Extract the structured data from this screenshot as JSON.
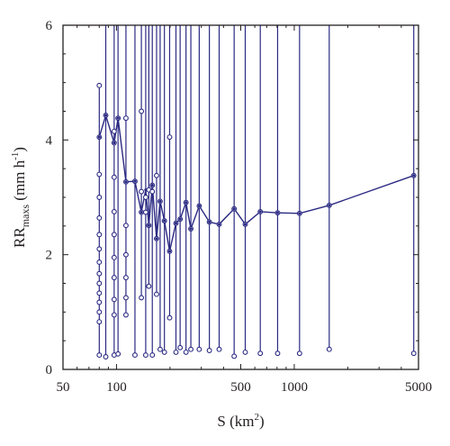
{
  "chart_data": {
    "type": "line",
    "xlabel_base": "S (km",
    "xlabel_sup": "2",
    "xlabel_end": ")",
    "ylabel_base": "RR",
    "ylabel_sub": "maxs",
    "ylabel_unit": " (mm h",
    "ylabel_sup": "-1",
    "ylabel_end": ")",
    "x_scale": "log",
    "xlim": [
      50,
      5000
    ],
    "ylim": [
      0,
      6
    ],
    "xticks": [
      50,
      100,
      500,
      1000,
      5000
    ],
    "xtick_labels": [
      "50",
      "100",
      "500",
      "1000",
      "5000"
    ],
    "yticks": [
      0,
      2,
      4,
      6
    ],
    "ytick_labels": [
      "0",
      "2",
      "4",
      "6"
    ],
    "grid": false,
    "colors": {
      "series": "#2b2a83",
      "axis": "#231f20"
    },
    "main_line": {
      "x": [
        80,
        87,
        97,
        102,
        113,
        127,
        138,
        146,
        152,
        159,
        168,
        176,
        186,
        199,
        216,
        228,
        246,
        262,
        292,
        333,
        378,
        459,
        530,
        644,
        806,
        1071,
        1573,
        4701
      ],
      "y": [
        4.05,
        4.43,
        3.95,
        4.38,
        3.27,
        3.28,
        2.74,
        3.13,
        2.51,
        3.21,
        2.28,
        2.93,
        2.59,
        2.06,
        2.55,
        2.62,
        2.91,
        2.45,
        2.85,
        2.57,
        2.53,
        2.8,
        2.53,
        2.75,
        2.73,
        2.72,
        2.86,
        3.38
      ]
    },
    "distributions": [
      {
        "x": 80,
        "top": 4.95,
        "points": [
          4.95,
          4.05,
          3.4,
          3.0,
          2.64,
          2.35,
          2.1,
          1.87,
          1.67,
          1.5,
          1.33,
          1.17,
          1.0,
          0.83,
          0.25
        ]
      },
      {
        "x": 87,
        "top": 6,
        "points": [
          4.43,
          0.22
        ]
      },
      {
        "x": 97,
        "top": 6,
        "points": [
          4.15,
          3.95,
          3.35,
          2.75,
          2.35,
          1.95,
          1.6,
          1.22,
          0.95,
          0.25
        ]
      },
      {
        "x": 102,
        "top": 6,
        "points": [
          4.38,
          0.27
        ]
      },
      {
        "x": 113,
        "top": 6,
        "points": [
          4.38,
          3.27,
          2.51,
          2.0,
          1.6,
          1.25,
          0.95
        ]
      },
      {
        "x": 127,
        "top": 6,
        "points": [
          3.28,
          0.25
        ]
      },
      {
        "x": 138,
        "top": 6,
        "points": [
          4.5,
          3.1,
          2.74,
          1.25
        ]
      },
      {
        "x": 146,
        "top": 6,
        "points": [
          3.0,
          2.74,
          0.25
        ]
      },
      {
        "x": 152,
        "top": 6,
        "points": [
          3.13,
          2.51,
          1.45
        ]
      },
      {
        "x": 159,
        "top": 6,
        "points": [
          3.21,
          3.1,
          0.25
        ]
      },
      {
        "x": 168,
        "top": 6,
        "points": [
          3.38,
          2.28,
          1.31
        ]
      },
      {
        "x": 176,
        "top": 6,
        "points": [
          2.93,
          0.35
        ]
      },
      {
        "x": 186,
        "top": 6,
        "points": [
          2.59,
          0.3
        ]
      },
      {
        "x": 199,
        "top": 6,
        "points": [
          4.05,
          2.06,
          0.9
        ]
      },
      {
        "x": 216,
        "top": 6,
        "points": [
          2.55,
          0.3
        ]
      },
      {
        "x": 228,
        "top": 6,
        "points": [
          2.62,
          0.38
        ]
      },
      {
        "x": 246,
        "top": 6,
        "points": [
          2.91,
          0.3
        ]
      },
      {
        "x": 262,
        "top": 6,
        "points": [
          2.45,
          0.35
        ]
      },
      {
        "x": 292,
        "top": 6,
        "points": [
          2.85,
          0.35
        ]
      },
      {
        "x": 333,
        "top": 6,
        "points": [
          2.57,
          0.33
        ]
      },
      {
        "x": 378,
        "top": 6,
        "points": [
          2.53,
          0.35
        ]
      },
      {
        "x": 459,
        "top": 6,
        "points": [
          2.8,
          0.23
        ]
      },
      {
        "x": 530,
        "top": 6,
        "points": [
          2.53,
          0.3
        ]
      },
      {
        "x": 644,
        "top": 6,
        "points": [
          2.75,
          0.28
        ]
      },
      {
        "x": 806,
        "top": 6,
        "points": [
          2.73,
          0.28
        ]
      },
      {
        "x": 1071,
        "top": 6,
        "points": [
          2.72,
          0.28
        ]
      },
      {
        "x": 1573,
        "top": 6,
        "points": [
          2.86,
          0.35
        ]
      },
      {
        "x": 4701,
        "top": 6,
        "points": [
          3.38,
          0.28
        ]
      }
    ]
  }
}
